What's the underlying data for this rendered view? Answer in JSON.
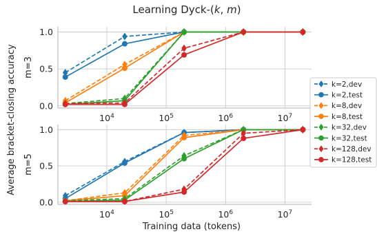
{
  "chart_data": {
    "type": "line",
    "title": "Learning Dyck-(k, m)",
    "title_prefix": "Learning Dyck-(",
    "title_k": "k",
    "title_sep": ", ",
    "title_m": "m",
    "title_suffix": ")",
    "ylabel": "Average bracket-closing accuracy",
    "xlabel": "Training data (tokens)",
    "xscale": "log",
    "x": [
      2000,
      20000,
      200000,
      2000000,
      20000000
    ],
    "xlim": [
      1500,
      28000000
    ],
    "xticks": [
      10000,
      100000,
      1000000,
      10000000
    ],
    "xtick_labels": [
      {
        "base": "10",
        "exp": "4"
      },
      {
        "base": "10",
        "exp": "5"
      },
      {
        "base": "10",
        "exp": "6"
      },
      {
        "base": "10",
        "exp": "7"
      }
    ],
    "ylim": [
      -0.03,
      1.07
    ],
    "yticks": [
      0.0,
      0.5,
      1.0
    ],
    "ytick_labels": [
      "0.0",
      "0.5",
      "1.0"
    ],
    "grid": true,
    "legend_position": "right",
    "colors": {
      "k2": "#1f77b4",
      "k8": "#ff7f0e",
      "k32": "#2ca02c",
      "k128": "#d62728",
      "grid": "#cccccc",
      "axis": "#b0b0b0"
    },
    "series_styles": [
      {
        "name": "k=2,dev",
        "color": "#1f77b4",
        "dash": true,
        "marker": "diamond"
      },
      {
        "name": "k=2,test",
        "color": "#1f77b4",
        "dash": false,
        "marker": "circle"
      },
      {
        "name": "k=8,dev",
        "color": "#ff7f0e",
        "dash": true,
        "marker": "diamond"
      },
      {
        "name": "k=8,test",
        "color": "#ff7f0e",
        "dash": false,
        "marker": "circle"
      },
      {
        "name": "k=32,dev",
        "color": "#2ca02c",
        "dash": true,
        "marker": "diamond"
      },
      {
        "name": "k=32,test",
        "color": "#2ca02c",
        "dash": false,
        "marker": "circle"
      },
      {
        "name": "k=128,dev",
        "color": "#d62728",
        "dash": true,
        "marker": "diamond"
      },
      {
        "name": "k=128,test",
        "color": "#d62728",
        "dash": false,
        "marker": "circle"
      }
    ],
    "panels": [
      {
        "label": "m=3",
        "values": [
          [
            0.45,
            0.94,
            1.0,
            1.0,
            1.0
          ],
          [
            0.39,
            0.84,
            1.0,
            1.0,
            1.0
          ],
          [
            0.07,
            0.56,
            1.0,
            1.0,
            1.0
          ],
          [
            0.04,
            0.51,
            1.0,
            1.0,
            1.0
          ],
          [
            0.03,
            0.1,
            1.0,
            1.0,
            1.0
          ],
          [
            0.02,
            0.07,
            1.0,
            1.0,
            1.0
          ],
          [
            0.03,
            0.04,
            0.78,
            1.0,
            1.0
          ],
          [
            0.02,
            0.02,
            0.69,
            1.0,
            1.0
          ]
        ]
      },
      {
        "label": "m=5",
        "values": [
          [
            0.09,
            0.56,
            0.96,
            1.0,
            1.0
          ],
          [
            0.05,
            0.54,
            0.96,
            1.0,
            1.0
          ],
          [
            0.02,
            0.13,
            0.92,
            1.0,
            1.0
          ],
          [
            0.02,
            0.09,
            0.89,
            1.0,
            1.0
          ],
          [
            0.02,
            0.05,
            0.64,
            1.0,
            1.0
          ],
          [
            0.01,
            0.03,
            0.6,
            1.0,
            1.0
          ],
          [
            0.01,
            0.01,
            0.18,
            0.95,
            1.0
          ],
          [
            0.01,
            0.01,
            0.14,
            0.88,
            1.0
          ]
        ]
      }
    ]
  }
}
